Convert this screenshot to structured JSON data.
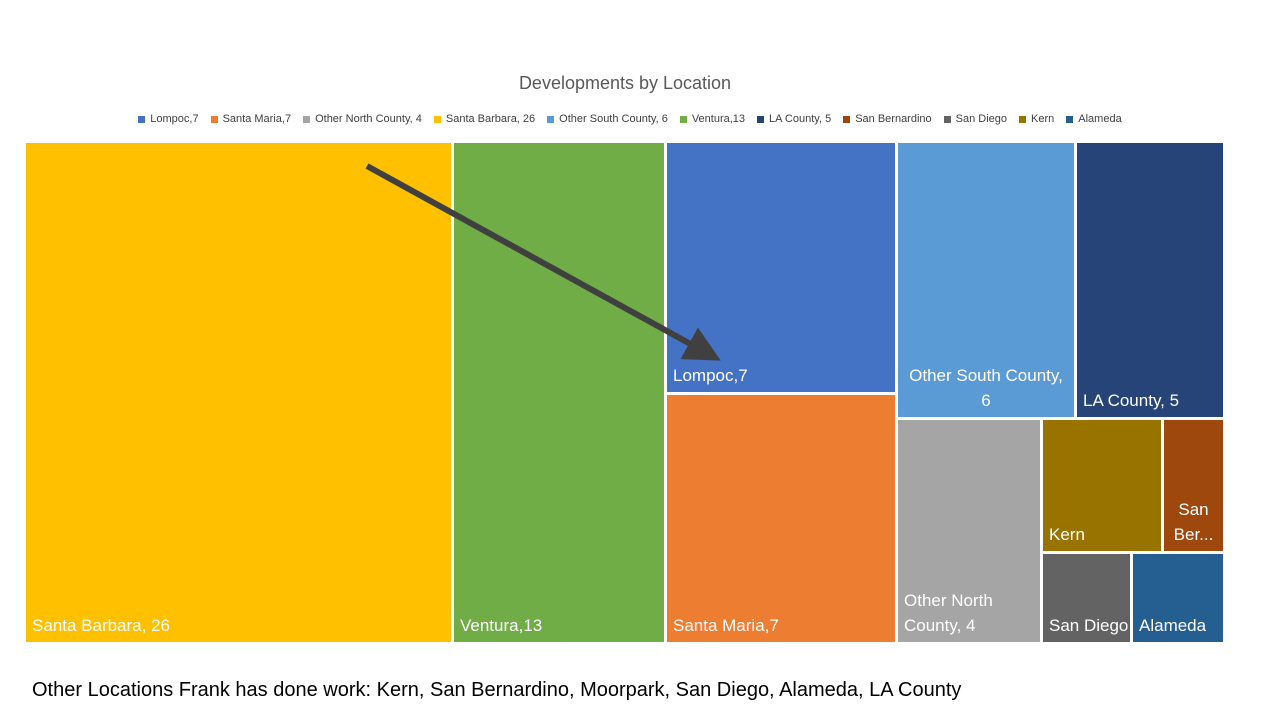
{
  "title": "Developments by Location",
  "legend": [
    {
      "label": "Lompoc,7",
      "color": "#4472C4"
    },
    {
      "label": "Santa Maria,7",
      "color": "#ED7D31"
    },
    {
      "label": "Other North County, 4",
      "color": "#A5A5A5"
    },
    {
      "label": "Santa Barbara, 26",
      "color": "#FFC000"
    },
    {
      "label": "Other South County, 6",
      "color": "#5B9BD5"
    },
    {
      "label": "Ventura,13",
      "color": "#70AD47"
    },
    {
      "label": "LA County, 5",
      "color": "#264478"
    },
    {
      "label": "San Bernardino",
      "color": "#9E480E"
    },
    {
      "label": "San Diego",
      "color": "#636363"
    },
    {
      "label": "Kern",
      "color": "#997300"
    },
    {
      "label": "Alameda",
      "color": "#255E91"
    }
  ],
  "chart_data": {
    "type": "treemap",
    "title": "Developments by Location",
    "legend_position": "top",
    "categories": [
      "Santa Barbara",
      "Ventura",
      "Lompoc",
      "Santa Maria",
      "Other South County",
      "LA County",
      "Other North County",
      "Kern",
      "San Bernardino",
      "San Diego",
      "Alameda"
    ],
    "values": [
      26,
      13,
      7,
      7,
      6,
      5,
      4,
      null,
      null,
      null,
      null
    ],
    "tiles": [
      {
        "key": "santa-barbara",
        "label": "Santa Barbara, 26",
        "color": "#FFC000"
      },
      {
        "key": "ventura",
        "label": "Ventura,13",
        "color": "#70AD47"
      },
      {
        "key": "lompoc",
        "label": "Lompoc,7",
        "color": "#4472C4"
      },
      {
        "key": "santa-maria",
        "label": "Santa Maria,7",
        "color": "#ED7D31"
      },
      {
        "key": "other-south-county",
        "label": "Other South County,\n6",
        "color": "#5B9BD5"
      },
      {
        "key": "la-county",
        "label": "LA County, 5",
        "color": "#264478"
      },
      {
        "key": "other-north-county",
        "label": "Other North\nCounty, 4",
        "color": "#A5A5A5"
      },
      {
        "key": "kern",
        "label": "Kern",
        "color": "#997300"
      },
      {
        "key": "san-bernardino",
        "label": "San\nBer...",
        "color": "#9E480E"
      },
      {
        "key": "san-diego",
        "label": "San Diego",
        "color": "#636363"
      },
      {
        "key": "alameda",
        "label": "Alameda",
        "color": "#255E91"
      }
    ]
  },
  "footer": "Other Locations Frank has done work: Kern, San Bernardino, Moorpark, San Diego, Alameda, LA County"
}
